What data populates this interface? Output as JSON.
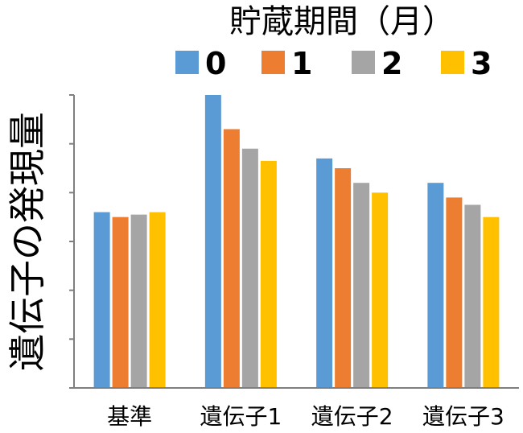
{
  "chart_data": {
    "type": "bar",
    "categories": [
      "基準",
      "遺伝子1",
      "遺伝子2",
      "遺伝子3"
    ],
    "series": [
      {
        "name": "0",
        "color": "#5b9bd5",
        "values": [
          3.6,
          6.0,
          4.7,
          4.2
        ]
      },
      {
        "name": "1",
        "color": "#ed7d31",
        "values": [
          3.5,
          5.3,
          4.5,
          3.9
        ]
      },
      {
        "name": "2",
        "color": "#a5a5a5",
        "values": [
          3.55,
          4.9,
          4.2,
          3.75
        ]
      },
      {
        "name": "3",
        "color": "#ffc000",
        "values": [
          3.6,
          4.65,
          4.0,
          3.5
        ]
      }
    ],
    "legend_title": "貯蔵期間（月）",
    "legend_position": "top",
    "ylabel": "遺伝子の発現量",
    "xlabel": "",
    "ylim": [
      0,
      6
    ],
    "y_tick_labels_shown": false,
    "grid": false
  }
}
